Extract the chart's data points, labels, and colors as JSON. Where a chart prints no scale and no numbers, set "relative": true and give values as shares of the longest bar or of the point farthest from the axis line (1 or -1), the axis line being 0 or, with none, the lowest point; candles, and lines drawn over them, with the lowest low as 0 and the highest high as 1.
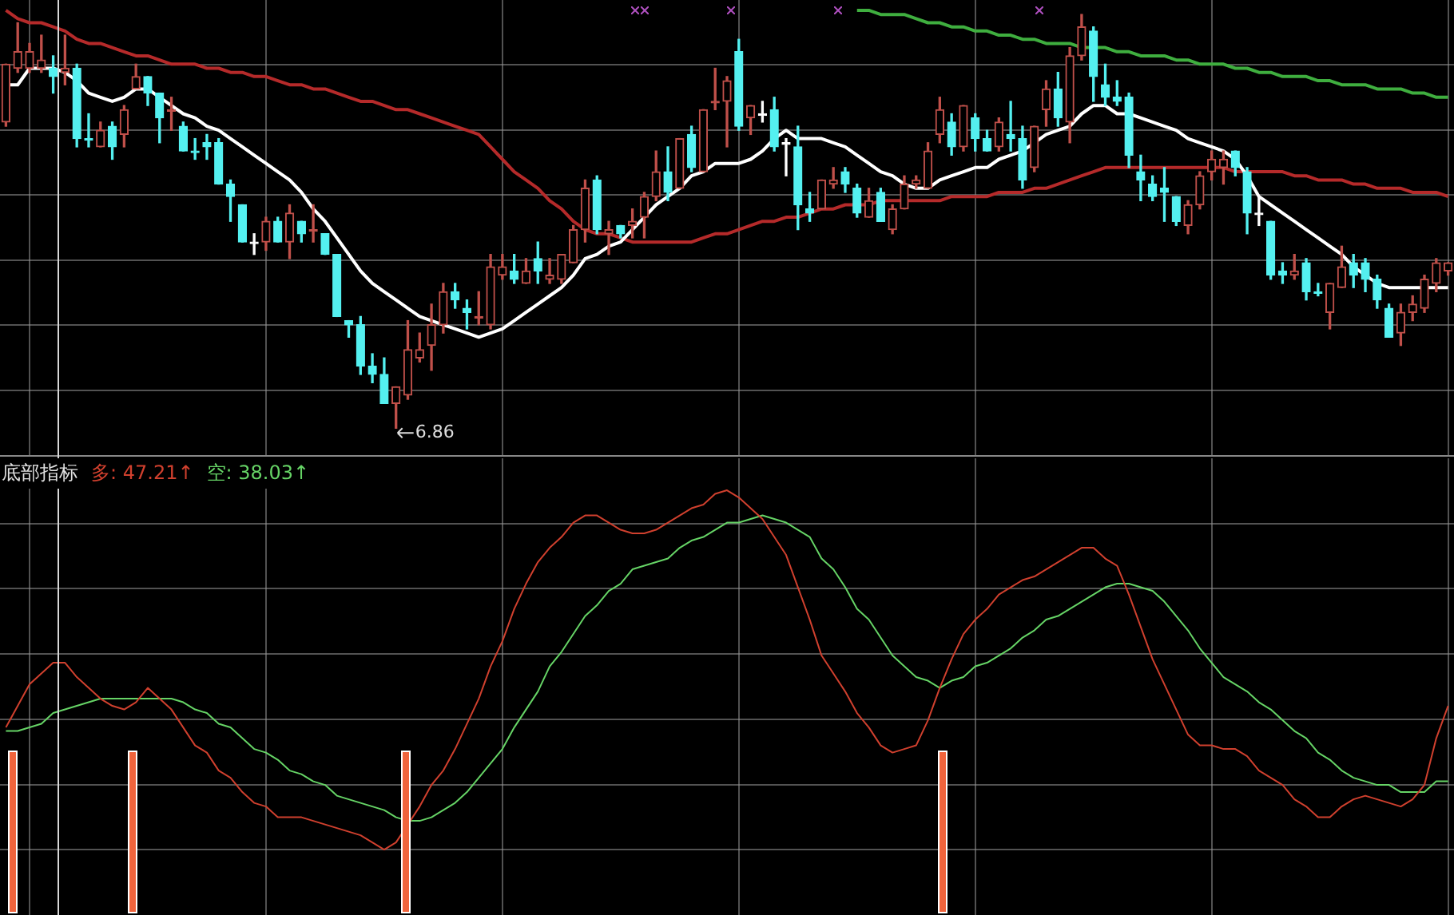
{
  "chart_data": [
    {
      "type": "candlestick",
      "relative": true,
      "grid": true,
      "tick_labels": false,
      "categories": [
        null,
        null,
        null,
        null,
        null,
        null,
        null,
        null,
        null,
        null,
        null,
        null,
        null,
        null,
        null,
        null,
        null,
        null,
        null,
        null,
        null,
        null,
        null,
        null,
        null,
        null,
        null,
        null,
        null,
        null,
        null,
        null,
        null,
        null,
        null,
        null,
        null,
        null,
        null,
        null,
        null,
        null,
        null,
        null,
        null,
        null,
        null,
        null,
        null,
        null,
        null,
        null,
        null,
        null,
        null,
        null,
        null,
        null,
        null,
        null,
        null,
        null,
        null,
        null,
        null,
        null,
        null,
        null,
        null,
        null,
        null,
        null,
        null,
        null,
        null,
        null,
        null,
        null,
        null,
        null,
        null,
        null,
        null,
        null,
        null,
        null,
        null,
        null,
        null,
        null,
        null,
        null,
        null,
        null,
        null,
        null,
        null,
        null,
        null,
        null,
        null,
        null,
        null,
        null,
        null,
        null,
        null,
        null,
        null,
        null,
        null,
        null,
        null,
        null,
        null,
        null,
        null,
        null,
        null,
        null,
        null,
        null,
        null
      ],
      "ohlc": [
        [
          0.74,
          0.88,
          0.73,
          0.88
        ],
        [
          0.87,
          0.98,
          0.86,
          0.91
        ],
        [
          0.87,
          0.93,
          0.86,
          0.91
        ],
        [
          0.87,
          0.95,
          0.86,
          0.89
        ],
        [
          0.87,
          0.9,
          0.81,
          0.85
        ],
        [
          0.86,
          0.95,
          0.83,
          0.87
        ],
        [
          0.87,
          0.88,
          0.68,
          0.7
        ],
        [
          0.7,
          0.76,
          0.68,
          0.7
        ],
        [
          0.68,
          0.74,
          0.68,
          0.72
        ],
        [
          0.73,
          0.74,
          0.65,
          0.68
        ],
        [
          0.71,
          0.78,
          0.68,
          0.77
        ],
        [
          0.82,
          0.88,
          0.82,
          0.85
        ],
        [
          0.85,
          0.85,
          0.78,
          0.81
        ],
        [
          0.81,
          0.81,
          0.69,
          0.75
        ],
        [
          0.77,
          0.8,
          0.72,
          0.77
        ],
        [
          0.73,
          0.74,
          0.67,
          0.67
        ],
        [
          0.67,
          0.7,
          0.65,
          0.67
        ],
        [
          0.69,
          0.71,
          0.65,
          0.68
        ],
        [
          0.69,
          0.7,
          0.59,
          0.59
        ],
        [
          0.59,
          0.6,
          0.5,
          0.56
        ],
        [
          0.54,
          0.54,
          0.45,
          0.45
        ],
        [
          0.45,
          0.47,
          0.42,
          0.45
        ],
        [
          0.45,
          0.51,
          0.43,
          0.5
        ],
        [
          0.5,
          0.51,
          0.45,
          0.45
        ],
        [
          0.45,
          0.54,
          0.41,
          0.52
        ],
        [
          0.5,
          0.5,
          0.45,
          0.47
        ],
        [
          0.48,
          0.54,
          0.45,
          0.48
        ],
        [
          0.47,
          0.47,
          0.42,
          0.42
        ],
        [
          0.42,
          0.42,
          0.27,
          0.27
        ],
        [
          0.26,
          0.26,
          0.22,
          0.25
        ],
        [
          0.25,
          0.27,
          0.13,
          0.15
        ],
        [
          0.15,
          0.18,
          0.11,
          0.13
        ],
        [
          0.13,
          0.17,
          0.06,
          0.06
        ],
        [
          0.06,
          0.1,
          0,
          0.1
        ],
        [
          0.08,
          0.26,
          0.07,
          0.19
        ],
        [
          0.17,
          0.23,
          0.16,
          0.19
        ],
        [
          0.2,
          0.3,
          0.14,
          0.25
        ],
        [
          0.25,
          0.35,
          0.23,
          0.33
        ],
        [
          0.33,
          0.35,
          0.29,
          0.31
        ],
        [
          0.29,
          0.31,
          0.24,
          0.28
        ],
        [
          0.27,
          0.33,
          0.25,
          0.27
        ],
        [
          0.25,
          0.42,
          0.24,
          0.39
        ],
        [
          0.37,
          0.42,
          0.36,
          0.39
        ],
        [
          0.38,
          0.42,
          0.35,
          0.36
        ],
        [
          0.35,
          0.41,
          0.35,
          0.38
        ],
        [
          0.41,
          0.45,
          0.35,
          0.38
        ],
        [
          0.36,
          0.41,
          0.35,
          0.37
        ],
        [
          0.36,
          0.42,
          0.35,
          0.42
        ],
        [
          0.4,
          0.49,
          0.4,
          0.48
        ],
        [
          0.48,
          0.6,
          0.45,
          0.58
        ],
        [
          0.6,
          0.61,
          0.47,
          0.48
        ],
        [
          0.47,
          0.5,
          0.42,
          0.48
        ],
        [
          0.49,
          0.49,
          0.46,
          0.47
        ],
        [
          0.49,
          0.53,
          0.46,
          0.5
        ],
        [
          0.51,
          0.57,
          0.46,
          0.56
        ],
        [
          0.56,
          0.67,
          0.55,
          0.62
        ],
        [
          0.62,
          0.68,
          0.55,
          0.57
        ],
        [
          0.58,
          0.7,
          0.58,
          0.7
        ],
        [
          0.71,
          0.73,
          0.62,
          0.63
        ],
        [
          0.62,
          0.77,
          0.62,
          0.77
        ],
        [
          0.79,
          0.87,
          0.77,
          0.79
        ],
        [
          0.79,
          0.85,
          0.68,
          0.84
        ],
        [
          0.91,
          0.94,
          0.72,
          0.73
        ],
        [
          0.75,
          0.78,
          0.71,
          0.78
        ],
        [
          0.76,
          0.79,
          0.74,
          0.76
        ],
        [
          0.77,
          0.8,
          0.67,
          0.68
        ],
        [
          0.69,
          0.7,
          0.61,
          0.69
        ],
        [
          0.68,
          0.73,
          0.48,
          0.54
        ],
        [
          0.53,
          0.57,
          0.5,
          0.52
        ],
        [
          0.53,
          0.6,
          0.53,
          0.6
        ],
        [
          0.59,
          0.63,
          0.58,
          0.6
        ],
        [
          0.62,
          0.63,
          0.57,
          0.59
        ],
        [
          0.58,
          0.59,
          0.51,
          0.52
        ],
        [
          0.51,
          0.58,
          0.51,
          0.55
        ],
        [
          0.57,
          0.58,
          0.5,
          0.5
        ],
        [
          0.48,
          0.54,
          0.47,
          0.53
        ],
        [
          0.53,
          0.61,
          0.53,
          0.59
        ],
        [
          0.59,
          0.61,
          0.58,
          0.6
        ],
        [
          0.58,
          0.69,
          0.58,
          0.67
        ],
        [
          0.71,
          0.8,
          0.69,
          0.77
        ],
        [
          0.74,
          0.76,
          0.66,
          0.68
        ],
        [
          0.68,
          0.78,
          0.67,
          0.78
        ],
        [
          0.75,
          0.76,
          0.67,
          0.7
        ],
        [
          0.7,
          0.72,
          0.67,
          0.67
        ],
        [
          0.68,
          0.75,
          0.67,
          0.74
        ],
        [
          0.71,
          0.79,
          0.67,
          0.7
        ],
        [
          0.7,
          0.73,
          0.58,
          0.6
        ],
        [
          0.63,
          0.73,
          0.62,
          0.73
        ],
        [
          0.77,
          0.84,
          0.73,
          0.82
        ],
        [
          0.82,
          0.86,
          0.73,
          0.75
        ],
        [
          0.74,
          0.92,
          0.69,
          0.9
        ],
        [
          0.9,
          1,
          0.89,
          0.97
        ],
        [
          0.96,
          0.97,
          0.79,
          0.85
        ],
        [
          0.83,
          0.88,
          0.78,
          0.8
        ],
        [
          0.8,
          0.84,
          0.78,
          0.79
        ],
        [
          0.8,
          0.81,
          0.63,
          0.66
        ],
        [
          0.62,
          0.66,
          0.55,
          0.6
        ],
        [
          0.59,
          0.61,
          0.55,
          0.56
        ],
        [
          0.58,
          0.63,
          0.5,
          0.57
        ],
        [
          0.56,
          0.56,
          0.49,
          0.5
        ],
        [
          0.49,
          0.55,
          0.47,
          0.54
        ],
        [
          0.54,
          0.62,
          0.53,
          0.61
        ],
        [
          0.62,
          0.67,
          0.6,
          0.65
        ],
        [
          0.63,
          0.67,
          0.59,
          0.65
        ],
        [
          0.67,
          0.67,
          0.61,
          0.63
        ],
        [
          0.62,
          0.63,
          0.47,
          0.52
        ],
        [
          0.52,
          0.56,
          0.49,
          0.52
        ],
        [
          0.5,
          0.5,
          0.36,
          0.37
        ],
        [
          0.38,
          0.4,
          0.35,
          0.37
        ],
        [
          0.37,
          0.42,
          0.36,
          0.38
        ],
        [
          0.4,
          0.41,
          0.31,
          0.33
        ],
        [
          0.33,
          0.35,
          0.32,
          0.33
        ],
        [
          0.28,
          0.35,
          0.24,
          0.35
        ],
        [
          0.34,
          0.44,
          0.34,
          0.39
        ],
        [
          0.4,
          0.42,
          0.34,
          0.37
        ],
        [
          0.4,
          0.41,
          0.33,
          0.36
        ],
        [
          0.36,
          0.37,
          0.29,
          0.31
        ],
        [
          0.29,
          0.3,
          0.22,
          0.22
        ],
        [
          0.23,
          0.3,
          0.2,
          0.28
        ],
        [
          0.28,
          0.32,
          0.26,
          0.3
        ],
        [
          0.29,
          0.37,
          0.28,
          0.36
        ],
        [
          0.35,
          0.41,
          0.33,
          0.4
        ],
        [
          0.38,
          0.4,
          0.37,
          0.4
        ]
      ],
      "colors": [
        "#c0504a",
        "#c0504a",
        "#c0504a",
        "#c0504a",
        "#54f0f0",
        "#c0504a",
        "#54f0f0",
        "#54f0f0",
        "#c0504a",
        "#54f0f0",
        "#c0504a",
        "#c0504a",
        "#54f0f0",
        "#54f0f0",
        "#c0504a",
        "#54f0f0",
        "#54f0f0",
        "#54f0f0",
        "#54f0f0",
        "#54f0f0",
        "#54f0f0",
        "#ffffff",
        "#c0504a",
        "#54f0f0",
        "#c0504a",
        "#54f0f0",
        "#c0504a",
        "#54f0f0",
        "#54f0f0",
        "#54f0f0",
        "#54f0f0",
        "#54f0f0",
        "#54f0f0",
        "#c0504a",
        "#c0504a",
        "#c0504a",
        "#c0504a",
        "#c0504a",
        "#54f0f0",
        "#54f0f0",
        "#c0504a",
        "#c0504a",
        "#c0504a",
        "#54f0f0",
        "#c0504a",
        "#54f0f0",
        "#c0504a",
        "#c0504a",
        "#c0504a",
        "#c0504a",
        "#54f0f0",
        "#c0504a",
        "#54f0f0",
        "#c0504a",
        "#c0504a",
        "#c0504a",
        "#54f0f0",
        "#c0504a",
        "#54f0f0",
        "#c0504a",
        "#c0504a",
        "#c0504a",
        "#54f0f0",
        "#c0504a",
        "#ffffff",
        "#54f0f0",
        "#ffffff",
        "#54f0f0",
        "#54f0f0",
        "#c0504a",
        "#c0504a",
        "#54f0f0",
        "#54f0f0",
        "#c0504a",
        "#54f0f0",
        "#c0504a",
        "#c0504a",
        "#c0504a",
        "#c0504a",
        "#c0504a",
        "#54f0f0",
        "#c0504a",
        "#54f0f0",
        "#54f0f0",
        "#c0504a",
        "#54f0f0",
        "#54f0f0",
        "#c0504a",
        "#c0504a",
        "#54f0f0",
        "#c0504a",
        "#c0504a",
        "#54f0f0",
        "#54f0f0",
        "#54f0f0",
        "#54f0f0",
        "#54f0f0",
        "#54f0f0",
        "#54f0f0",
        "#54f0f0",
        "#c0504a",
        "#c0504a",
        "#c0504a",
        "#c0504a",
        "#54f0f0",
        "#54f0f0",
        "#ffffff",
        "#54f0f0",
        "#54f0f0",
        "#c0504a",
        "#54f0f0",
        "#54f0f0",
        "#c0504a",
        "#c0504a",
        "#54f0f0",
        "#54f0f0",
        "#54f0f0",
        "#54f0f0",
        "#c0504a",
        "#c0504a",
        "#c0504a",
        "#c0504a",
        "#c0504a"
      ],
      "series": [
        {
          "type": "line",
          "color": "#ffffff",
          "values": [
            0.83,
            0.83,
            0.87,
            0.87,
            0.87,
            0.86,
            0.84,
            0.81,
            0.8,
            0.79,
            0.8,
            0.82,
            0.82,
            0.8,
            0.78,
            0.76,
            0.75,
            0.73,
            0.72,
            0.7,
            0.68,
            0.66,
            0.64,
            0.62,
            0.6,
            0.57,
            0.53,
            0.5,
            0.46,
            0.42,
            0.38,
            0.35,
            0.33,
            0.31,
            0.29,
            0.27,
            0.26,
            0.25,
            0.24,
            0.23,
            0.22,
            0.23,
            0.24,
            0.26,
            0.28,
            0.3,
            0.32,
            0.34,
            0.37,
            0.41,
            0.42,
            0.44,
            0.45,
            0.48,
            0.51,
            0.54,
            0.56,
            0.58,
            0.61,
            0.62,
            0.64,
            0.64,
            0.64,
            0.65,
            0.67,
            0.7,
            0.72,
            0.7,
            0.7,
            0.7,
            0.69,
            0.68,
            0.66,
            0.64,
            0.62,
            0.61,
            0.59,
            0.58,
            0.58,
            0.6,
            0.61,
            0.62,
            0.63,
            0.63,
            0.65,
            0.66,
            0.67,
            0.69,
            0.71,
            0.72,
            0.73,
            0.76,
            0.78,
            0.78,
            0.76,
            0.76,
            0.75,
            0.74,
            0.73,
            0.72,
            0.7,
            0.69,
            0.68,
            0.67,
            0.65,
            0.61,
            0.56,
            0.54,
            0.52,
            0.5,
            0.48,
            0.46,
            0.44,
            0.42,
            0.39,
            0.37,
            0.35,
            0.34,
            0.34,
            0.34,
            0.34,
            0.34,
            0.34
          ]
        },
        {
          "type": "line",
          "color": "#b52a2a",
          "values": [
            1.01,
            0.99,
            0.98,
            0.98,
            0.97,
            0.96,
            0.94,
            0.93,
            0.93,
            0.92,
            0.91,
            0.9,
            0.9,
            0.89,
            0.88,
            0.88,
            0.88,
            0.87,
            0.87,
            0.86,
            0.86,
            0.85,
            0.85,
            0.84,
            0.83,
            0.83,
            0.82,
            0.82,
            0.81,
            0.8,
            0.79,
            0.79,
            0.78,
            0.77,
            0.77,
            0.76,
            0.75,
            0.74,
            0.73,
            0.72,
            0.71,
            0.68,
            0.65,
            0.62,
            0.6,
            0.58,
            0.55,
            0.53,
            0.5,
            0.48,
            0.47,
            0.47,
            0.46,
            0.45,
            0.45,
            0.45,
            0.45,
            0.45,
            0.45,
            0.46,
            0.47,
            0.47,
            0.48,
            0.49,
            0.5,
            0.5,
            0.51,
            0.51,
            0.52,
            0.53,
            0.53,
            0.54,
            0.54,
            0.54,
            0.55,
            0.55,
            0.55,
            0.55,
            0.55,
            0.55,
            0.56,
            0.56,
            0.56,
            0.56,
            0.57,
            0.57,
            0.57,
            0.58,
            0.58,
            0.59,
            0.6,
            0.61,
            0.62,
            0.63,
            0.63,
            0.63,
            0.63,
            0.63,
            0.63,
            0.63,
            0.63,
            0.63,
            0.63,
            0.63,
            0.62,
            0.62,
            0.62,
            0.62,
            0.62,
            0.61,
            0.61,
            0.6,
            0.6,
            0.6,
            0.59,
            0.59,
            0.58,
            0.58,
            0.58,
            0.57,
            0.57,
            0.57,
            0.56
          ]
        },
        {
          "type": "line",
          "color": "#3fae3f",
          "values": [
            null,
            null,
            null,
            null,
            null,
            null,
            null,
            null,
            null,
            null,
            null,
            null,
            null,
            null,
            null,
            null,
            null,
            null,
            null,
            null,
            null,
            null,
            null,
            null,
            null,
            null,
            null,
            null,
            null,
            null,
            null,
            null,
            null,
            null,
            null,
            null,
            null,
            null,
            null,
            null,
            null,
            null,
            null,
            null,
            null,
            null,
            null,
            null,
            null,
            null,
            null,
            null,
            null,
            null,
            null,
            null,
            null,
            null,
            null,
            null,
            null,
            null,
            null,
            null,
            null,
            null,
            null,
            null,
            null,
            null,
            null,
            null,
            1.01,
            1.01,
            1.0,
            1.0,
            1.0,
            0.99,
            0.98,
            0.98,
            0.97,
            0.97,
            0.96,
            0.96,
            0.95,
            0.95,
            0.94,
            0.94,
            0.93,
            0.93,
            0.93,
            0.92,
            0.92,
            0.92,
            0.91,
            0.91,
            0.9,
            0.9,
            0.9,
            0.89,
            0.89,
            0.88,
            0.88,
            0.88,
            0.87,
            0.87,
            0.86,
            0.86,
            0.85,
            0.85,
            0.85,
            0.84,
            0.84,
            0.83,
            0.83,
            0.83,
            0.82,
            0.82,
            0.82,
            0.81,
            0.81,
            0.8,
            0.8
          ]
        }
      ],
      "annotations": [
        "6.86"
      ]
    },
    {
      "type": "line",
      "relative": true,
      "grid": true,
      "tick_labels": false,
      "title": "底部指标",
      "categories": [
        null,
        null,
        null,
        null,
        null,
        null,
        null,
        null,
        null,
        null,
        null,
        null,
        null,
        null,
        null,
        null,
        null,
        null,
        null,
        null,
        null,
        null,
        null,
        null,
        null,
        null,
        null,
        null,
        null,
        null,
        null,
        null,
        null,
        null,
        null,
        null,
        null,
        null,
        null,
        null,
        null,
        null,
        null,
        null,
        null,
        null,
        null,
        null,
        null,
        null,
        null,
        null,
        null,
        null,
        null,
        null,
        null,
        null,
        null,
        null,
        null,
        null,
        null,
        null,
        null,
        null,
        null,
        null,
        null,
        null,
        null,
        null,
        null,
        null,
        null,
        null,
        null,
        null,
        null,
        null,
        null,
        null,
        null,
        null,
        null,
        null,
        null,
        null,
        null,
        null,
        null,
        null,
        null,
        null,
        null,
        null,
        null,
        null,
        null,
        null,
        null,
        null,
        null,
        null,
        null,
        null,
        null,
        null,
        null,
        null,
        null,
        null,
        null,
        null,
        null,
        null,
        null,
        null,
        null,
        null,
        null,
        null,
        null
      ],
      "series": [
        {
          "name": "多: 47.21↑",
          "color": "#d0402e",
          "values": [
            0.34,
            0.4,
            0.46,
            0.49,
            0.52,
            0.52,
            0.48,
            0.45,
            0.42,
            0.4,
            0.39,
            0.41,
            0.45,
            0.42,
            0.39,
            0.34,
            0.29,
            0.27,
            0.22,
            0.2,
            0.16,
            0.13,
            0.12,
            0.09,
            0.09,
            0.09,
            0.08,
            0.07,
            0.06,
            0.05,
            0.04,
            0.02,
            0,
            0.02,
            0.07,
            0.12,
            0.18,
            0.22,
            0.28,
            0.35,
            0.42,
            0.51,
            0.58,
            0.67,
            0.74,
            0.8,
            0.84,
            0.87,
            0.91,
            0.93,
            0.93,
            0.91,
            0.89,
            0.88,
            0.88,
            0.89,
            0.91,
            0.93,
            0.95,
            0.96,
            0.99,
            1,
            0.98,
            0.95,
            0.92,
            0.87,
            0.82,
            0.73,
            0.64,
            0.54,
            0.49,
            0.44,
            0.38,
            0.34,
            0.29,
            0.27,
            0.28,
            0.29,
            0.36,
            0.45,
            0.53,
            0.6,
            0.64,
            0.67,
            0.71,
            0.73,
            0.75,
            0.76,
            0.78,
            0.8,
            0.82,
            0.84,
            0.84,
            0.81,
            0.79,
            0.71,
            0.62,
            0.53,
            0.46,
            0.39,
            0.32,
            0.29,
            0.29,
            0.28,
            0.28,
            0.26,
            0.22,
            0.2,
            0.18,
            0.14,
            0.12,
            0.09,
            0.09,
            0.12,
            0.14,
            0.15,
            0.14,
            0.13,
            0.12,
            0.14,
            0.18,
            0.31,
            0.4
          ]
        },
        {
          "name": "空: 38.03↑",
          "color": "#66d466",
          "values": [
            0.33,
            0.33,
            0.34,
            0.35,
            0.38,
            0.39,
            0.4,
            0.41,
            0.42,
            0.42,
            0.42,
            0.42,
            0.42,
            0.42,
            0.42,
            0.41,
            0.39,
            0.38,
            0.35,
            0.34,
            0.31,
            0.28,
            0.27,
            0.25,
            0.22,
            0.21,
            0.19,
            0.18,
            0.15,
            0.14,
            0.13,
            0.12,
            0.11,
            0.09,
            0.08,
            0.08,
            0.09,
            0.11,
            0.13,
            0.16,
            0.2,
            0.24,
            0.28,
            0.34,
            0.39,
            0.44,
            0.51,
            0.55,
            0.6,
            0.65,
            0.68,
            0.72,
            0.74,
            0.78,
            0.79,
            0.8,
            0.81,
            0.84,
            0.86,
            0.87,
            0.89,
            0.91,
            0.91,
            0.92,
            0.93,
            0.92,
            0.91,
            0.89,
            0.87,
            0.81,
            0.78,
            0.73,
            0.67,
            0.64,
            0.59,
            0.54,
            0.51,
            0.48,
            0.47,
            0.45,
            0.47,
            0.48,
            0.51,
            0.52,
            0.54,
            0.56,
            0.59,
            0.61,
            0.64,
            0.65,
            0.67,
            0.69,
            0.71,
            0.73,
            0.74,
            0.74,
            0.73,
            0.72,
            0.69,
            0.65,
            0.61,
            0.56,
            0.52,
            0.48,
            0.46,
            0.44,
            0.41,
            0.39,
            0.36,
            0.33,
            0.31,
            0.27,
            0.25,
            0.22,
            0.2,
            0.19,
            0.18,
            0.18,
            0.16,
            0.16,
            0.16,
            0.19,
            0.19
          ]
        }
      ]
    }
  ]
}
